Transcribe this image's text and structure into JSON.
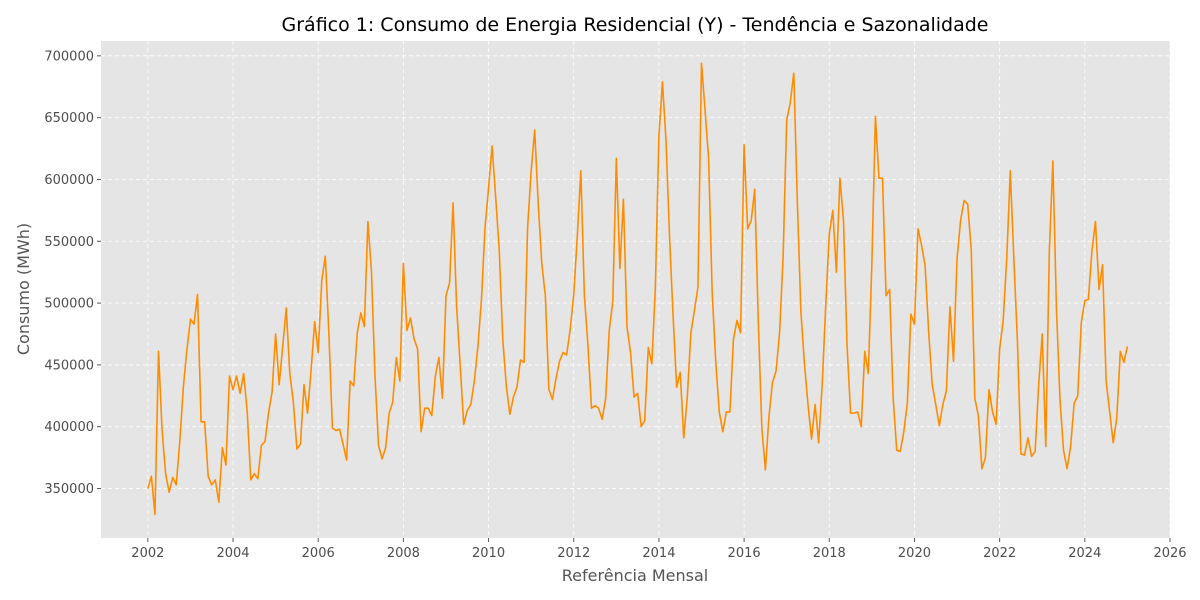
{
  "chart_data": {
    "type": "line",
    "title": "Gráfico 1: Consumo de Energia Residencial (Y) - Tendência e Sazonalidade",
    "xlabel": "Referência Mensal",
    "ylabel": "Consumo (MWh)",
    "xlim": [
      2000.9,
      2026.0
    ],
    "ylim": [
      310000,
      712000
    ],
    "x_ticks": [
      2002,
      2004,
      2006,
      2008,
      2010,
      2012,
      2014,
      2016,
      2018,
      2020,
      2022,
      2024,
      2026
    ],
    "y_ticks": [
      350000,
      400000,
      450000,
      500000,
      550000,
      600000,
      650000,
      700000
    ],
    "x_tick_labels": [
      "2002",
      "2004",
      "2006",
      "2008",
      "2010",
      "2012",
      "2014",
      "2016",
      "2018",
      "2020",
      "2022",
      "2024",
      "2026"
    ],
    "y_tick_labels": [
      "350000",
      "400000",
      "450000",
      "500000",
      "550000",
      "600000",
      "650000",
      "700000"
    ],
    "grid": true,
    "colors": {
      "line": "#ff8c00",
      "plot_bg": "#e5e5e5",
      "grid": "#ffffff"
    },
    "series": [
      {
        "x_start": "2002-01",
        "frequency": "monthly",
        "values": [
          350000,
          360000,
          329000,
          461000,
          398000,
          362000,
          347000,
          359000,
          353000,
          388000,
          432000,
          462000,
          487000,
          483000,
          507000,
          404000,
          404000,
          360000,
          353000,
          357000,
          339000,
          383000,
          369000,
          441000,
          430000,
          441000,
          427000,
          443000,
          412000,
          357000,
          362000,
          358000,
          385000,
          388000,
          411000,
          428000,
          475000,
          434000,
          465000,
          496000,
          443000,
          420000,
          382000,
          386000,
          434000,
          411000,
          446000,
          485000,
          460000,
          518000,
          538000,
          476000,
          399000,
          397000,
          398000,
          386000,
          373000,
          437000,
          433000,
          476000,
          492000,
          481000,
          566000,
          526000,
          441000,
          385000,
          374000,
          383000,
          411000,
          420000,
          456000,
          437000,
          532000,
          478000,
          488000,
          471000,
          463000,
          396000,
          415000,
          415000,
          409000,
          441000,
          456000,
          423000,
          506000,
          516000,
          581000,
          497000,
          450000,
          402000,
          413000,
          418000,
          437000,
          465000,
          503000,
          561000,
          593000,
          627000,
          586000,
          543000,
          471000,
          433000,
          410000,
          424000,
          432000,
          454000,
          452000,
          561000,
          607000,
          640000,
          580000,
          532000,
          506000,
          430000,
          422000,
          439000,
          453000,
          460000,
          458000,
          479000,
          507000,
          554000,
          607000,
          506000,
          466000,
          415000,
          417000,
          415000,
          406000,
          423000,
          478000,
          501000,
          617000,
          528000,
          584000,
          481000,
          460000,
          424000,
          427000,
          400000,
          405000,
          464000,
          451000,
          513000,
          635000,
          679000,
          631000,
          553000,
          489000,
          432000,
          444000,
          391000,
          424000,
          476000,
          494000,
          513000,
          694000,
          656000,
          617000,
          509000,
          453000,
          412000,
          396000,
          412000,
          412000,
          471000,
          486000,
          476000,
          628000,
          560000,
          567000,
          592000,
          485000,
          399000,
          365000,
          408000,
          436000,
          445000,
          476000,
          538000,
          648000,
          662000,
          686000,
          582000,
          493000,
          451000,
          418000,
          390000,
          418000,
          387000,
          434000,
          498000,
          556000,
          575000,
          525000,
          601000,
          567000,
          466000,
          411000,
          411000,
          412000,
          400000,
          461000,
          443000,
          532000,
          651000,
          601000,
          601000,
          506000,
          511000,
          423000,
          381000,
          380000,
          396000,
          419000,
          491000,
          483000,
          560000,
          547000,
          530000,
          477000,
          434000,
          418000,
          401000,
          418000,
          429000,
          497000,
          453000,
          536000,
          567000,
          583000,
          580000,
          543000,
          423000,
          409000,
          366000,
          375000,
          430000,
          412000,
          402000,
          463000,
          486000,
          536000,
          607000,
          536000,
          470000,
          378000,
          377000,
          391000,
          376000,
          380000,
          434000,
          475000,
          384000,
          542000,
          615000,
          496000,
          422000,
          381000,
          366000,
          384000,
          419000,
          425000,
          484000,
          502000,
          503000,
          542000,
          566000,
          511000,
          531000,
          437000,
          412000,
          387000,
          407000,
          461000,
          452000,
          465000
        ]
      }
    ]
  }
}
